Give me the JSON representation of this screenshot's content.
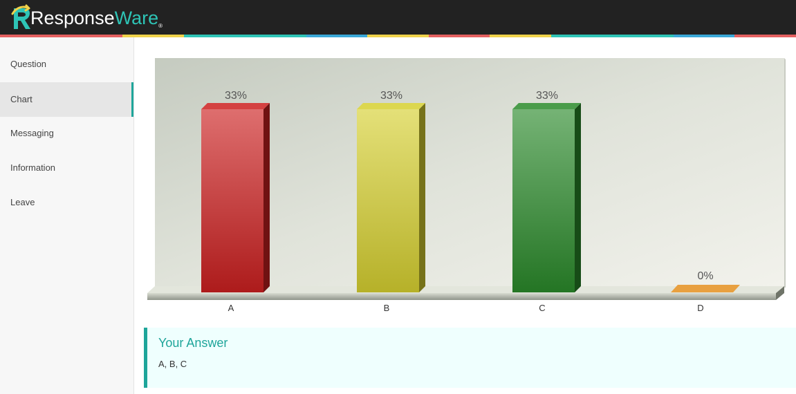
{
  "header": {
    "logo_word1": "Response",
    "logo_word2": "Ware",
    "logo_mark": "®",
    "stripe_colors": [
      "#e46060",
      "#e46060",
      "#f0d24a",
      "#2ec4b6",
      "#2ec4b6",
      "#3aa8d8",
      "#f0d24a",
      "#e46060",
      "#f0d24a",
      "#2ec4b6",
      "#2ec4b6",
      "#3aa8d8",
      "#e46060"
    ]
  },
  "sidebar": {
    "items": [
      {
        "label": "Question",
        "active": false
      },
      {
        "label": "Chart",
        "active": true
      },
      {
        "label": "Messaging",
        "active": false
      },
      {
        "label": "Information",
        "active": false
      },
      {
        "label": "Leave",
        "active": false
      }
    ]
  },
  "chart_data": {
    "type": "bar",
    "categories": [
      "A",
      "B",
      "C",
      "D"
    ],
    "values": [
      33,
      33,
      33,
      0
    ],
    "data_labels": [
      "33%",
      "33%",
      "33%",
      "0%"
    ],
    "colors": [
      "#cc2020",
      "#d6d030",
      "#2a8a2a",
      "#e8a040"
    ],
    "ylim": [
      0,
      33
    ],
    "grid": false,
    "legend": "none"
  },
  "answer": {
    "title": "Your Answer",
    "value": "A, B, C"
  }
}
